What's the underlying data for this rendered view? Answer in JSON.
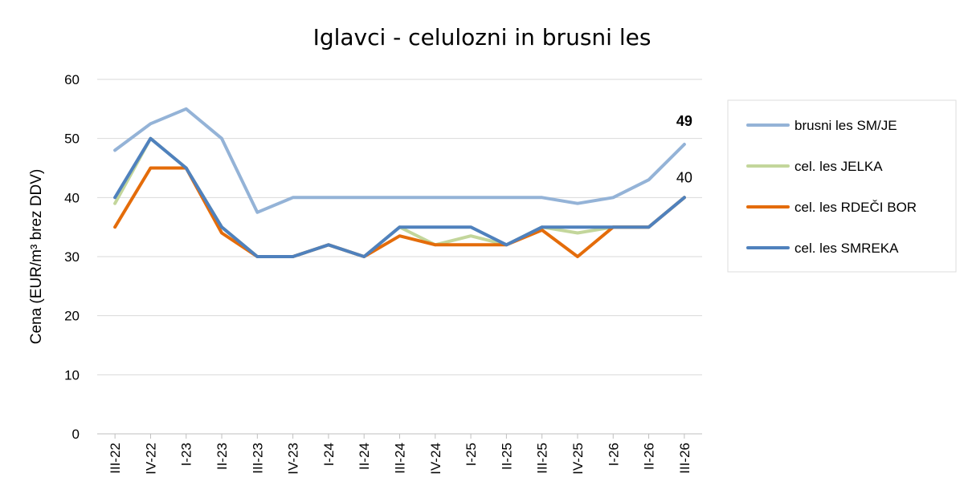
{
  "chart_data": {
    "type": "line",
    "title": "Iglavci - celulozni in brusni les",
    "ylabel": "Cena (EUR/m³ brez DDV)",
    "xlabel": "",
    "ylim": [
      0,
      60
    ],
    "yticks": [
      "0",
      "10",
      "20",
      "30",
      "40",
      "50",
      "60"
    ],
    "grid": true,
    "legend_position": "right",
    "categories": [
      "III-22",
      "IV-22",
      "I-23",
      "II-23",
      "III-23",
      "IV-23",
      "I-24",
      "II-24",
      "III-24",
      "IV-24",
      "I-25",
      "II-25",
      "III-25",
      "IV-25",
      "I-26",
      "II-26",
      "III-26"
    ],
    "series": [
      {
        "name": "brusni les SM/JE",
        "color": "#94b3d7",
        "values": [
          48,
          52.5,
          55,
          50,
          37.5,
          40,
          40,
          40,
          40,
          40,
          40,
          40,
          40,
          39,
          40,
          43,
          49
        ]
      },
      {
        "name": "cel. les JELKA",
        "color": "#c3d69b",
        "values": [
          39,
          50,
          45,
          35,
          30,
          30,
          32,
          30,
          35,
          32,
          33.5,
          32,
          35,
          34,
          35,
          35,
          40
        ]
      },
      {
        "name": "cel. les RDEČI BOR",
        "color": "#e46c0a",
        "values": [
          35,
          45,
          45,
          34,
          30,
          30,
          32,
          30,
          33.5,
          32,
          32,
          32,
          34.5,
          30,
          35,
          35,
          40
        ]
      },
      {
        "name": "cel. les SMREKA",
        "color": "#4f81bd",
        "values": [
          40,
          50,
          45,
          35,
          30,
          30,
          32,
          30,
          35,
          35,
          35,
          32,
          35,
          35,
          35,
          35,
          40
        ]
      }
    ],
    "data_labels": [
      {
        "text": "49",
        "series": 0,
        "index": 16,
        "bold": true
      },
      {
        "text": "40",
        "series": 3,
        "index": 16,
        "bold": false
      }
    ]
  }
}
